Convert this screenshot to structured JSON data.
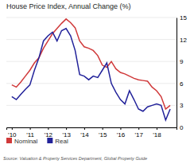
{
  "chart_data": {
    "type": "line",
    "title": "House Price Index, Annual Change (%)",
    "source": "Source: Valuation & Property Services Department, Global Property Guide",
    "x": [
      2010.0,
      2010.25,
      2010.5,
      2010.75,
      2011.0,
      2011.25,
      2011.5,
      2011.75,
      2012.0,
      2012.25,
      2012.5,
      2012.75,
      2013.0,
      2013.25,
      2013.5,
      2013.75,
      2014.0,
      2014.25,
      2014.5,
      2014.75,
      2015.0,
      2015.25,
      2015.5,
      2015.75,
      2016.0,
      2016.25,
      2016.5,
      2016.75,
      2017.0,
      2017.25,
      2017.5,
      2017.75,
      2018.0,
      2018.25,
      2018.5,
      2018.75
    ],
    "series": [
      {
        "name": "Nominal",
        "color": "#d0393a",
        "values": [
          5.8,
          5.5,
          6.2,
          7.0,
          7.8,
          8.8,
          9.5,
          10.8,
          11.8,
          12.8,
          13.5,
          14.2,
          14.8,
          14.3,
          13.6,
          11.8,
          11.0,
          10.8,
          10.5,
          9.8,
          8.5,
          8.2,
          9.0,
          8.0,
          7.5,
          7.3,
          7.0,
          6.7,
          6.5,
          6.4,
          6.3,
          5.5,
          5.0,
          4.2,
          2.5,
          3.0
        ]
      },
      {
        "name": "Real",
        "color": "#22229a",
        "values": [
          4.2,
          3.8,
          4.5,
          5.2,
          5.8,
          7.8,
          9.5,
          11.8,
          12.5,
          13.0,
          11.8,
          13.2,
          13.5,
          12.5,
          10.5,
          7.2,
          7.0,
          6.5,
          7.0,
          6.8,
          7.8,
          8.8,
          6.0,
          4.8,
          3.8,
          3.2,
          5.0,
          3.8,
          2.5,
          2.2,
          2.8,
          3.0,
          3.2,
          3.0,
          1.0,
          2.5
        ]
      }
    ],
    "xlim": [
      2009.7,
      2019.1
    ],
    "xticks": [
      {
        "value": 2010,
        "label": "'10"
      },
      {
        "value": 2011,
        "label": "'11"
      },
      {
        "value": 2012,
        "label": "'12"
      },
      {
        "value": 2013,
        "label": "'13"
      },
      {
        "value": 2014,
        "label": "'14"
      },
      {
        "value": 2015,
        "label": "'15"
      },
      {
        "value": 2016,
        "label": "'16"
      },
      {
        "value": 2017,
        "label": "'17"
      },
      {
        "value": 2018,
        "label": "'18"
      }
    ],
    "ylim": [
      0,
      15
    ],
    "yticks": [
      0,
      3,
      6,
      9,
      12,
      15
    ],
    "grid": true,
    "legend": "bottom"
  }
}
